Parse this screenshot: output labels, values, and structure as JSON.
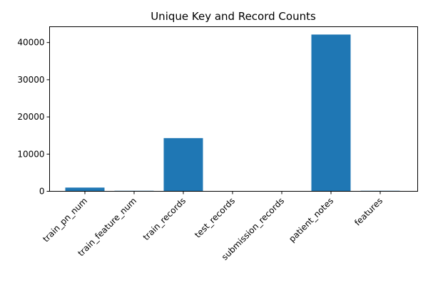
{
  "chart_data": {
    "type": "bar",
    "title": "Unique Key and Record Counts",
    "xlabel": "",
    "ylabel": "",
    "categories": [
      "train_pn_num",
      "train_feature_num",
      "train_records",
      "test_records",
      "submission_records",
      "patient_notes",
      "features"
    ],
    "values": [
      1000,
      143,
      14300,
      5,
      5,
      42146,
      143
    ],
    "ylim": [
      0,
      44250
    ],
    "yticks": [
      0,
      10000,
      20000,
      30000,
      40000
    ],
    "bar_color": "#1f77b4",
    "grid": false,
    "legend": "none"
  }
}
